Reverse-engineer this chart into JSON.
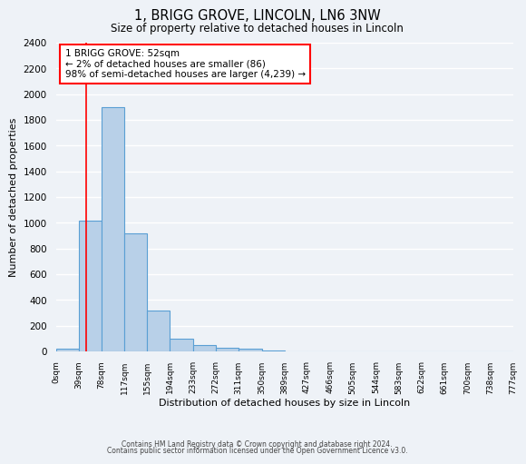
{
  "title": "1, BRIGG GROVE, LINCOLN, LN6 3NW",
  "subtitle": "Size of property relative to detached houses in Lincoln",
  "xlabel": "Distribution of detached houses by size in Lincoln",
  "ylabel": "Number of detached properties",
  "bar_color": "#b8d0e8",
  "bar_edge_color": "#5a9fd4",
  "background_color": "#eef2f7",
  "grid_color": "#ffffff",
  "red_line_x": 52,
  "annotation_box_text": "1 BRIGG GROVE: 52sqm\n← 2% of detached houses are smaller (86)\n98% of semi-detached houses are larger (4,239) →",
  "bin_edges": [
    0,
    39,
    78,
    117,
    155,
    194,
    233,
    272,
    311,
    350,
    389,
    427,
    466,
    505,
    544,
    583,
    622,
    661,
    700,
    738,
    777
  ],
  "bar_heights": [
    20,
    1020,
    1900,
    920,
    320,
    100,
    50,
    25,
    20,
    5,
    0,
    0,
    0,
    0,
    0,
    0,
    0,
    0,
    0,
    0
  ],
  "ylim": [
    0,
    2400
  ],
  "yticks": [
    0,
    200,
    400,
    600,
    800,
    1000,
    1200,
    1400,
    1600,
    1800,
    2000,
    2200,
    2400
  ],
  "tick_labels": [
    "0sqm",
    "39sqm",
    "78sqm",
    "117sqm",
    "155sqm",
    "194sqm",
    "233sqm",
    "272sqm",
    "311sqm",
    "350sqm",
    "389sqm",
    "427sqm",
    "466sqm",
    "505sqm",
    "544sqm",
    "583sqm",
    "622sqm",
    "661sqm",
    "700sqm",
    "738sqm",
    "777sqm"
  ],
  "footer_line1": "Contains HM Land Registry data © Crown copyright and database right 2024.",
  "footer_line2": "Contains public sector information licensed under the Open Government Licence v3.0."
}
